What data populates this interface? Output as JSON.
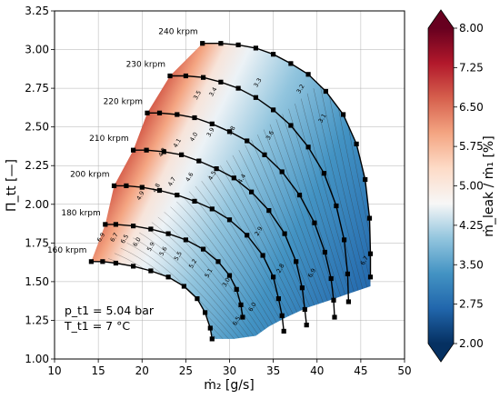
{
  "chart_data": {
    "type": "heatmap",
    "xlabel": "ṁ₂ [g/s]",
    "ylabel": "Π_tt [—]",
    "xlim": [
      10,
      50
    ],
    "ylim": [
      1.0,
      3.25
    ],
    "x_ticks": [
      "10",
      "15",
      "20",
      "25",
      "30",
      "35",
      "40",
      "45",
      "50"
    ],
    "y_ticks": [
      "1.00",
      "1.25",
      "1.50",
      "1.75",
      "2.00",
      "2.25",
      "2.50",
      "2.75",
      "3.00",
      "3.25"
    ],
    "colorbar": {
      "label": "ṁ_leak / ṁ₁ [%]",
      "min": 2.0,
      "max": 8.0,
      "ticks": [
        "2.00",
        "2.75",
        "3.50",
        "4.25",
        "5.00",
        "5.75",
        "6.50",
        "7.25",
        "8.00"
      ],
      "colors": [
        "#053061",
        "#2166ac",
        "#4393c3",
        "#92c5de",
        "#f7f7f7",
        "#fddbc7",
        "#f4a582",
        "#d6604d",
        "#b2182b",
        "#67001f"
      ]
    },
    "annotations": [
      "p_t1 = 5.04 bar",
      "T_t1 = 7 °C"
    ],
    "speed_lines": [
      {
        "label": "160 krpm",
        "x": [
          14.2,
          15.5,
          17.0,
          19.0,
          21.0,
          23.0,
          24.8,
          26.3,
          27.2,
          27.8,
          28.0
        ],
        "y": [
          1.63,
          1.63,
          1.62,
          1.6,
          1.57,
          1.53,
          1.47,
          1.39,
          1.3,
          1.2,
          1.13
        ]
      },
      {
        "label": "180 krpm",
        "x": [
          15.8,
          17.0,
          19.0,
          21.0,
          23.0,
          25.0,
          27.0,
          28.7,
          30.0,
          30.8,
          31.3,
          31.5
        ],
        "y": [
          1.87,
          1.87,
          1.86,
          1.84,
          1.81,
          1.77,
          1.71,
          1.63,
          1.54,
          1.45,
          1.35,
          1.27
        ]
      },
      {
        "label": "200 krpm",
        "x": [
          16.8,
          18.2,
          20.0,
          22.0,
          24.0,
          26.0,
          28.0,
          30.0,
          32.0,
          33.8,
          35.0,
          35.6,
          36.0,
          36.2
        ],
        "y": [
          2.12,
          2.12,
          2.11,
          2.09,
          2.06,
          2.02,
          1.97,
          1.9,
          1.8,
          1.67,
          1.53,
          1.39,
          1.28,
          1.18
        ]
      },
      {
        "label": "210 krpm",
        "x": [
          19.0,
          20.5,
          22.5,
          24.5,
          26.5,
          28.5,
          30.5,
          32.5,
          34.5,
          36.3,
          37.6,
          38.3,
          38.6,
          38.8
        ],
        "y": [
          2.35,
          2.35,
          2.34,
          2.32,
          2.28,
          2.23,
          2.17,
          2.08,
          1.96,
          1.81,
          1.63,
          1.46,
          1.32,
          1.22
        ]
      },
      {
        "label": "220 krpm",
        "x": [
          20.6,
          22.0,
          24.0,
          26.0,
          28.0,
          30.0,
          32.0,
          34.0,
          36.0,
          38.0,
          39.7,
          40.9,
          41.6,
          41.9,
          42.0
        ],
        "y": [
          2.59,
          2.59,
          2.58,
          2.56,
          2.52,
          2.47,
          2.41,
          2.32,
          2.21,
          2.06,
          1.88,
          1.69,
          1.52,
          1.38,
          1.27
        ]
      },
      {
        "label": "230 krpm",
        "x": [
          23.2,
          25.0,
          27.0,
          29.0,
          31.0,
          33.0,
          35.0,
          37.0,
          39.0,
          40.8,
          42.2,
          43.1,
          43.5,
          43.6
        ],
        "y": [
          2.83,
          2.83,
          2.82,
          2.79,
          2.75,
          2.69,
          2.61,
          2.51,
          2.37,
          2.2,
          1.99,
          1.77,
          1.55,
          1.37
        ]
      },
      {
        "label": "240 krpm",
        "x": [
          26.9,
          29.0,
          31.0,
          33.0,
          35.0,
          37.0,
          39.0,
          41.0,
          43.0,
          44.5,
          45.5,
          46.0,
          46.1,
          46.1
        ],
        "y": [
          3.04,
          3.04,
          3.03,
          3.01,
          2.97,
          2.91,
          2.84,
          2.73,
          2.58,
          2.39,
          2.16,
          1.91,
          1.68,
          1.53
        ]
      }
    ],
    "contour_labels": [
      "6.9",
      "6.7",
      "6.5",
      "6.0",
      "5.9",
      "5.6",
      "5.5",
      "5.2",
      "5.1",
      "4.9",
      "4.8",
      "4.7",
      "4.6",
      "4.5",
      "4.4",
      "4.3",
      "4.1",
      "4.0",
      "3.9",
      "3.8",
      "3.6",
      "3.5",
      "3.4",
      "3.3",
      "3.2",
      "3.1",
      "3.0",
      "2.9",
      "2.8"
    ]
  }
}
